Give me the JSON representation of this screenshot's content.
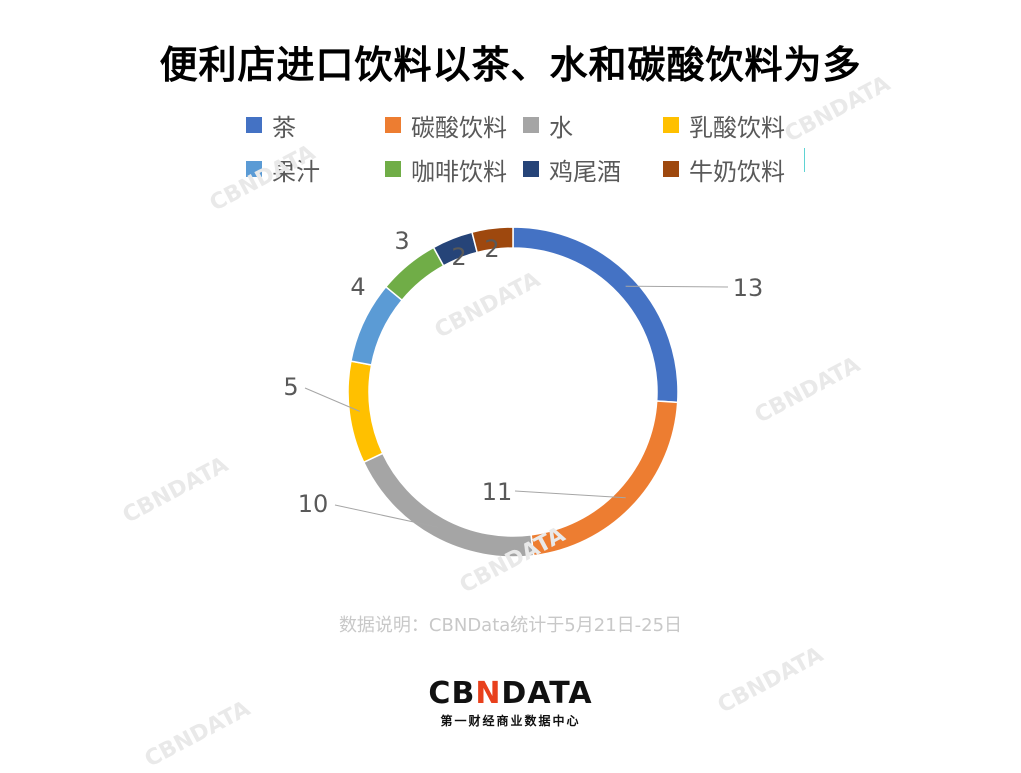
{
  "chart_data": {
    "type": "pie",
    "title": "便利店进口饮料以茶、水和碳酸饮料为多",
    "donut": true,
    "legend_position": "top",
    "categories": [
      "茶",
      "碳酸饮料",
      "水",
      "乳酸饮料",
      "果汁",
      "咖啡饮料",
      "鸡尾酒",
      "牛奶饮料"
    ],
    "values": [
      13,
      11,
      10,
      5,
      4,
      3,
      2,
      2
    ],
    "colors": [
      "#4472c4",
      "#ed7d31",
      "#a5a5a5",
      "#ffc000",
      "#5b9bd5",
      "#70ad47",
      "#264478",
      "#9e480e"
    ],
    "data_labels": [
      "13",
      "11",
      "10",
      "5",
      "4",
      "3",
      "2",
      "2"
    ]
  },
  "note": "数据说明：CBNData统计于5月21日-25日",
  "brand": {
    "logo_left": "CB",
    "logo_accent": "N",
    "logo_right": "DATA",
    "subtitle": "第一财经商业数据中心"
  },
  "watermark_text": "CBNDATA"
}
